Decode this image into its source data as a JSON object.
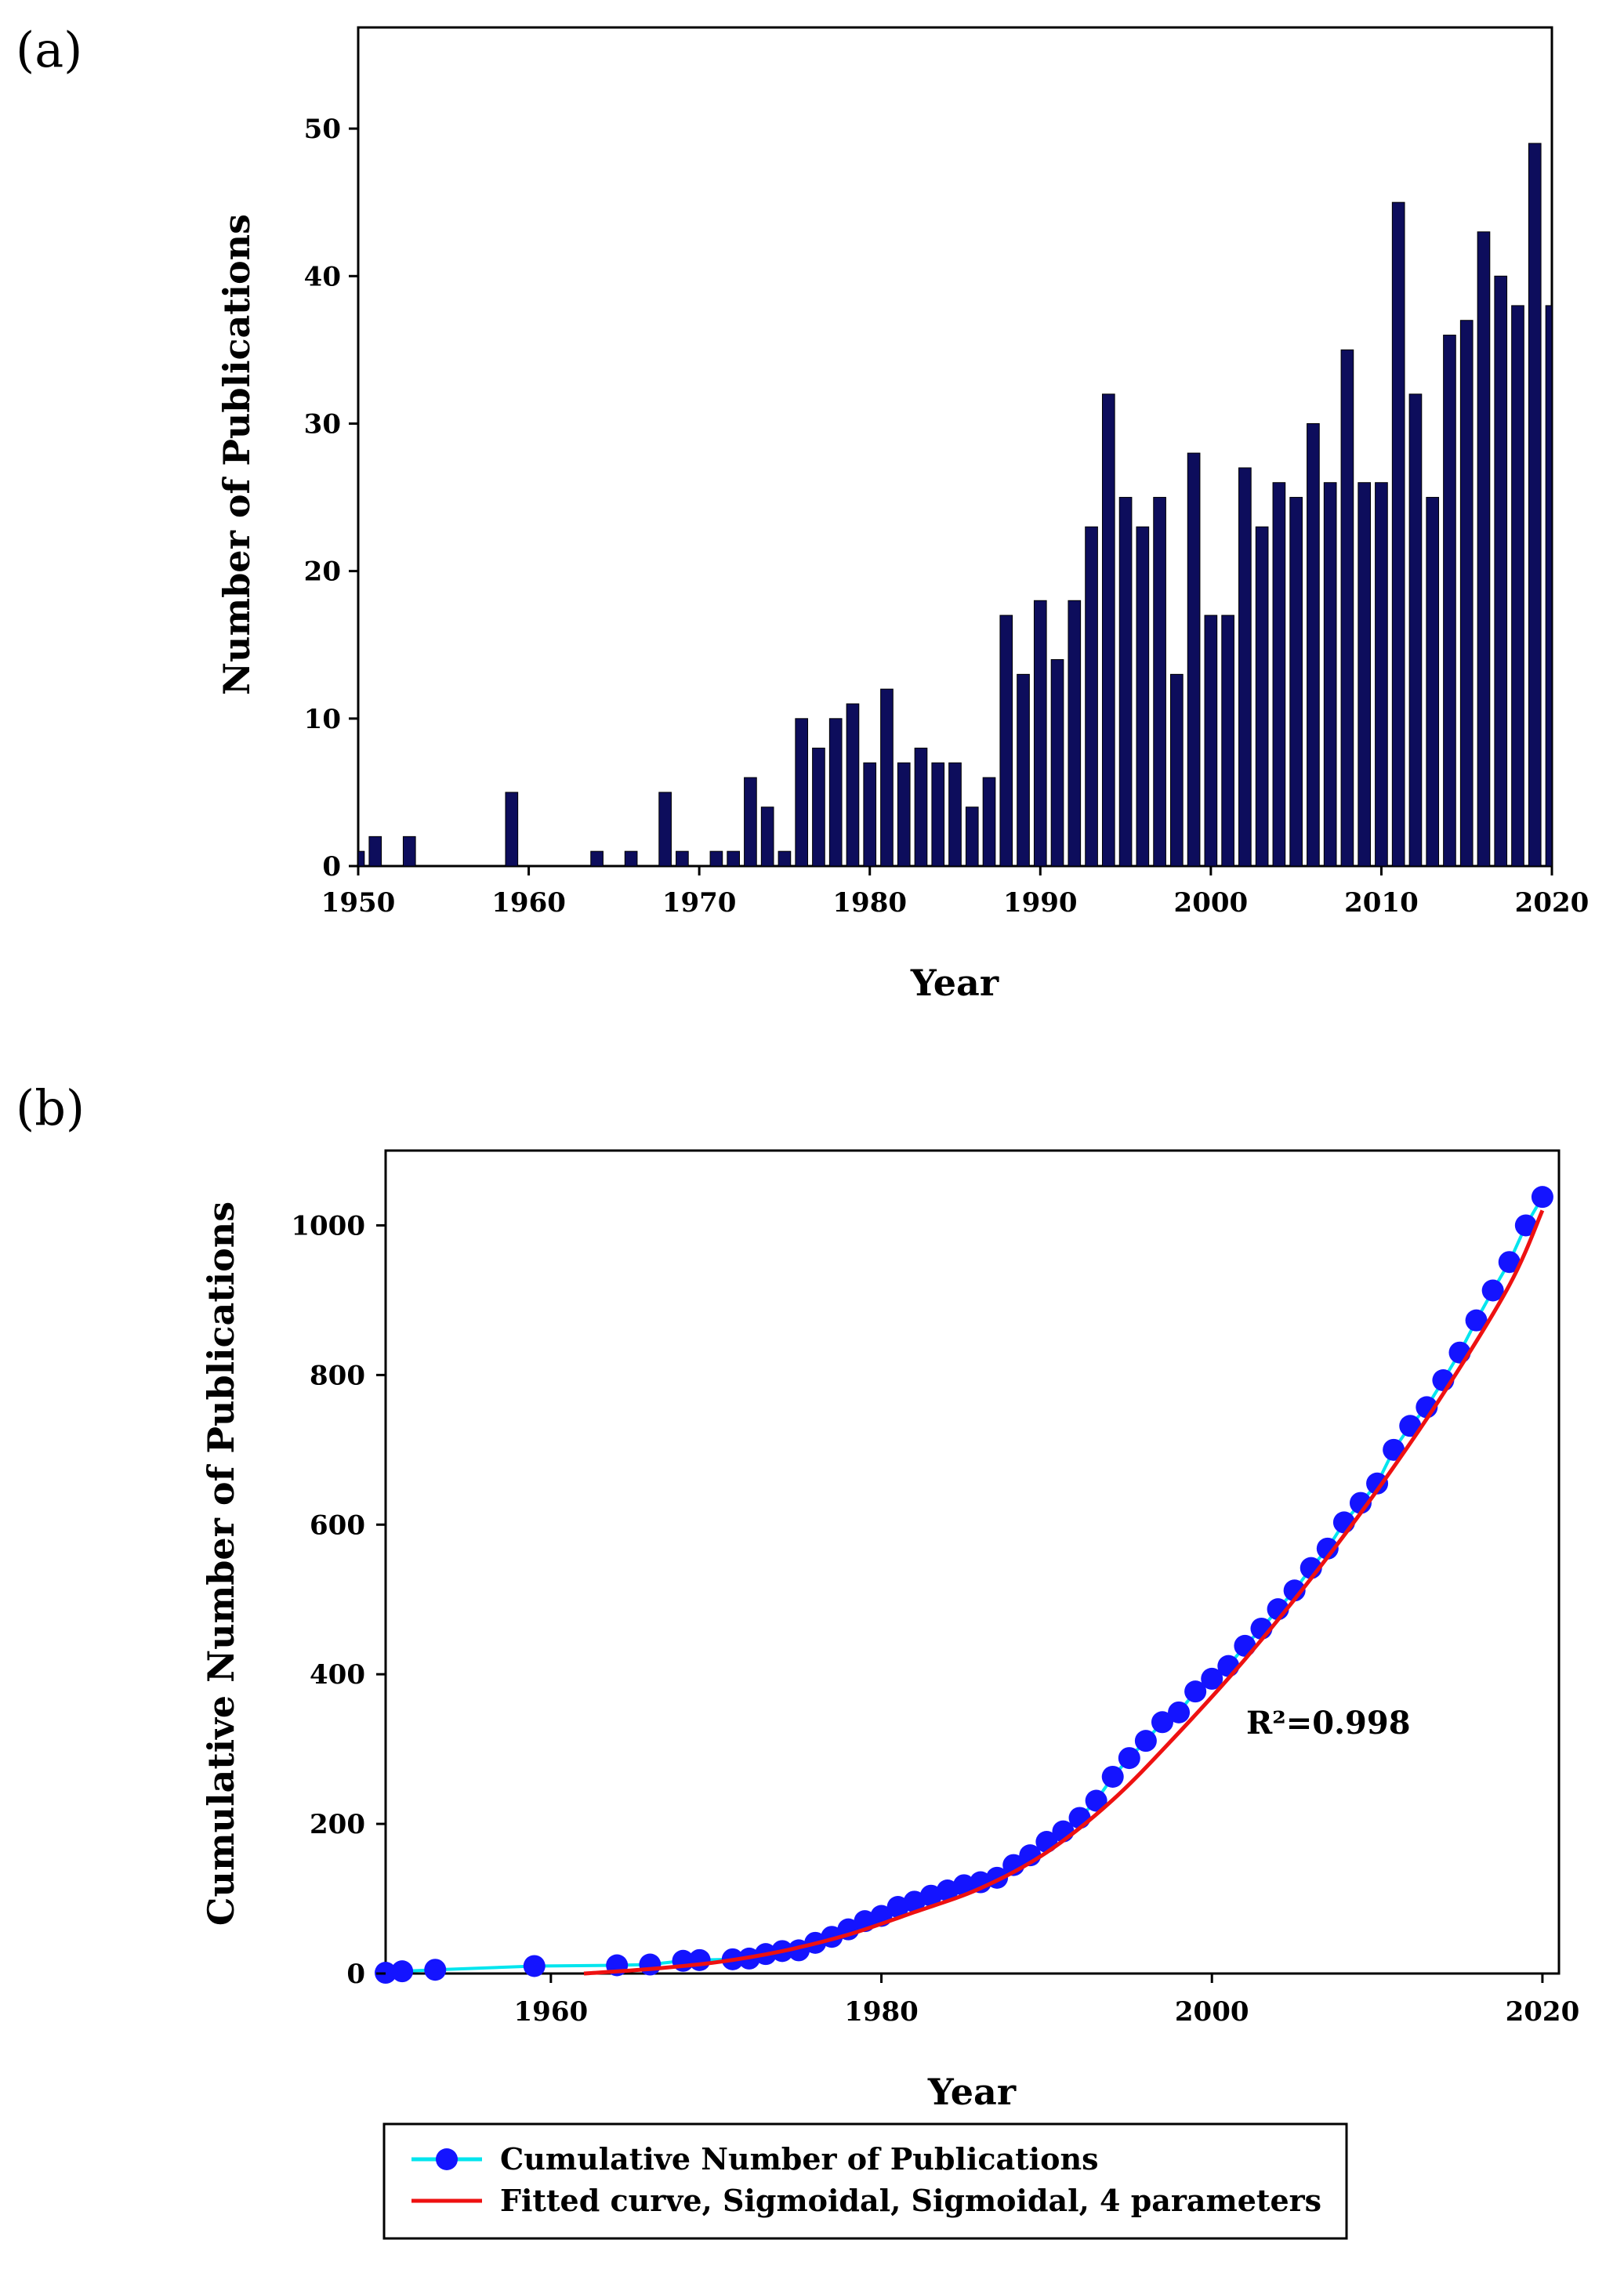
{
  "panel_a_label": "(a)",
  "panel_b_label": "(b)",
  "chart_data": [
    {
      "type": "bar",
      "title": "",
      "xlabel": "Year",
      "ylabel": "Number of Publications",
      "xlim": [
        1950,
        2020
      ],
      "ylim": [
        0,
        55
      ],
      "x_ticks": [
        1950,
        1960,
        1970,
        1980,
        1990,
        2000,
        2010,
        2020
      ],
      "y_ticks": [
        0,
        10,
        20,
        30,
        40,
        50
      ],
      "grid": false,
      "bar_color": "#0d0d5c",
      "bars": [
        {
          "year": 1950,
          "value": 1
        },
        {
          "year": 1951,
          "value": 2
        },
        {
          "year": 1953,
          "value": 2
        },
        {
          "year": 1959,
          "value": 5
        },
        {
          "year": 1964,
          "value": 1
        },
        {
          "year": 1966,
          "value": 1
        },
        {
          "year": 1968,
          "value": 5
        },
        {
          "year": 1969,
          "value": 1
        },
        {
          "year": 1971,
          "value": 1
        },
        {
          "year": 1972,
          "value": 1
        },
        {
          "year": 1973,
          "value": 6
        },
        {
          "year": 1974,
          "value": 4
        },
        {
          "year": 1975,
          "value": 1
        },
        {
          "year": 1976,
          "value": 10
        },
        {
          "year": 1977,
          "value": 8
        },
        {
          "year": 1978,
          "value": 10
        },
        {
          "year": 1979,
          "value": 11
        },
        {
          "year": 1980,
          "value": 7
        },
        {
          "year": 1981,
          "value": 12
        },
        {
          "year": 1982,
          "value": 7
        },
        {
          "year": 1983,
          "value": 8
        },
        {
          "year": 1984,
          "value": 7
        },
        {
          "year": 1985,
          "value": 7
        },
        {
          "year": 1986,
          "value": 4
        },
        {
          "year": 1987,
          "value": 6
        },
        {
          "year": 1988,
          "value": 17
        },
        {
          "year": 1989,
          "value": 13
        },
        {
          "year": 1990,
          "value": 18
        },
        {
          "year": 1991,
          "value": 14
        },
        {
          "year": 1992,
          "value": 18
        },
        {
          "year": 1993,
          "value": 23
        },
        {
          "year": 1994,
          "value": 32
        },
        {
          "year": 1995,
          "value": 25
        },
        {
          "year": 1996,
          "value": 23
        },
        {
          "year": 1997,
          "value": 25
        },
        {
          "year": 1998,
          "value": 13
        },
        {
          "year": 1999,
          "value": 28
        },
        {
          "year": 2000,
          "value": 17
        },
        {
          "year": 2001,
          "value": 17
        },
        {
          "year": 2002,
          "value": 27
        },
        {
          "year": 2003,
          "value": 23
        },
        {
          "year": 2004,
          "value": 26
        },
        {
          "year": 2005,
          "value": 25
        },
        {
          "year": 2006,
          "value": 30
        },
        {
          "year": 2007,
          "value": 26
        },
        {
          "year": 2008,
          "value": 35
        },
        {
          "year": 2009,
          "value": 26
        },
        {
          "year": 2010,
          "value": 26
        },
        {
          "year": 2011,
          "value": 45
        },
        {
          "year": 2012,
          "value": 32
        },
        {
          "year": 2013,
          "value": 25
        },
        {
          "year": 2014,
          "value": 36
        },
        {
          "year": 2015,
          "value": 37
        },
        {
          "year": 2016,
          "value": 43
        },
        {
          "year": 2017,
          "value": 40
        },
        {
          "year": 2018,
          "value": 38
        },
        {
          "year": 2019,
          "value": 49
        },
        {
          "year": 2020,
          "value": 38
        }
      ]
    },
    {
      "type": "scatter",
      "title": "",
      "xlabel": "Year",
      "ylabel": "Cumulative Number of Publications",
      "xlim": [
        1950,
        2021
      ],
      "ylim": [
        0,
        1100
      ],
      "x_ticks": [
        1960,
        1980,
        2000,
        2020
      ],
      "y_ticks": [
        0,
        200,
        400,
        600,
        800,
        1000
      ],
      "grid": false,
      "annotation": "R²=0.998",
      "legend": {
        "position": "below",
        "entries": [
          {
            "label": "Cumulative Number of Publications",
            "line_color": "#00e5ee",
            "marker_color": "#1414ff"
          },
          {
            "label": "Fitted curve, Sigmoidal, Sigmoidal, 4 parameters",
            "line_color": "#ee1111"
          }
        ]
      },
      "series": [
        {
          "name": "Cumulative Number of Publications",
          "x": [
            1950,
            1951,
            1953,
            1959,
            1964,
            1966,
            1968,
            1969,
            1971,
            1972,
            1973,
            1974,
            1975,
            1976,
            1977,
            1978,
            1979,
            1980,
            1981,
            1982,
            1983,
            1984,
            1985,
            1986,
            1987,
            1988,
            1989,
            1990,
            1991,
            1992,
            1993,
            1994,
            1995,
            1996,
            1997,
            1998,
            1999,
            2000,
            2001,
            2002,
            2003,
            2004,
            2005,
            2006,
            2007,
            2008,
            2009,
            2010,
            2011,
            2012,
            2013,
            2014,
            2015,
            2016,
            2017,
            2018,
            2019,
            2020
          ],
          "y": [
            1,
            3,
            5,
            10,
            11,
            12,
            17,
            18,
            19,
            20,
            26,
            30,
            31,
            41,
            49,
            59,
            70,
            77,
            89,
            96,
            104,
            111,
            118,
            122,
            128,
            145,
            158,
            176,
            190,
            208,
            231,
            263,
            288,
            311,
            336,
            349,
            377,
            394,
            411,
            438,
            461,
            487,
            512,
            542,
            568,
            603,
            629,
            655,
            700,
            732,
            757,
            793,
            830,
            873,
            913,
            951,
            1000,
            1038
          ]
        },
        {
          "name": "Fitted curve, Sigmoidal, Sigmoidal, 4 parameters",
          "x": [
            1962,
            1966,
            1970,
            1974,
            1978,
            1982,
            1986,
            1990,
            1994,
            1998,
            2002,
            2006,
            2010,
            2014,
            2018,
            2020
          ],
          "y": [
            0,
            6,
            15,
            30,
            52,
            82,
            114,
            162,
            232,
            322,
            420,
            528,
            646,
            775,
            920,
            1020
          ]
        }
      ]
    }
  ]
}
